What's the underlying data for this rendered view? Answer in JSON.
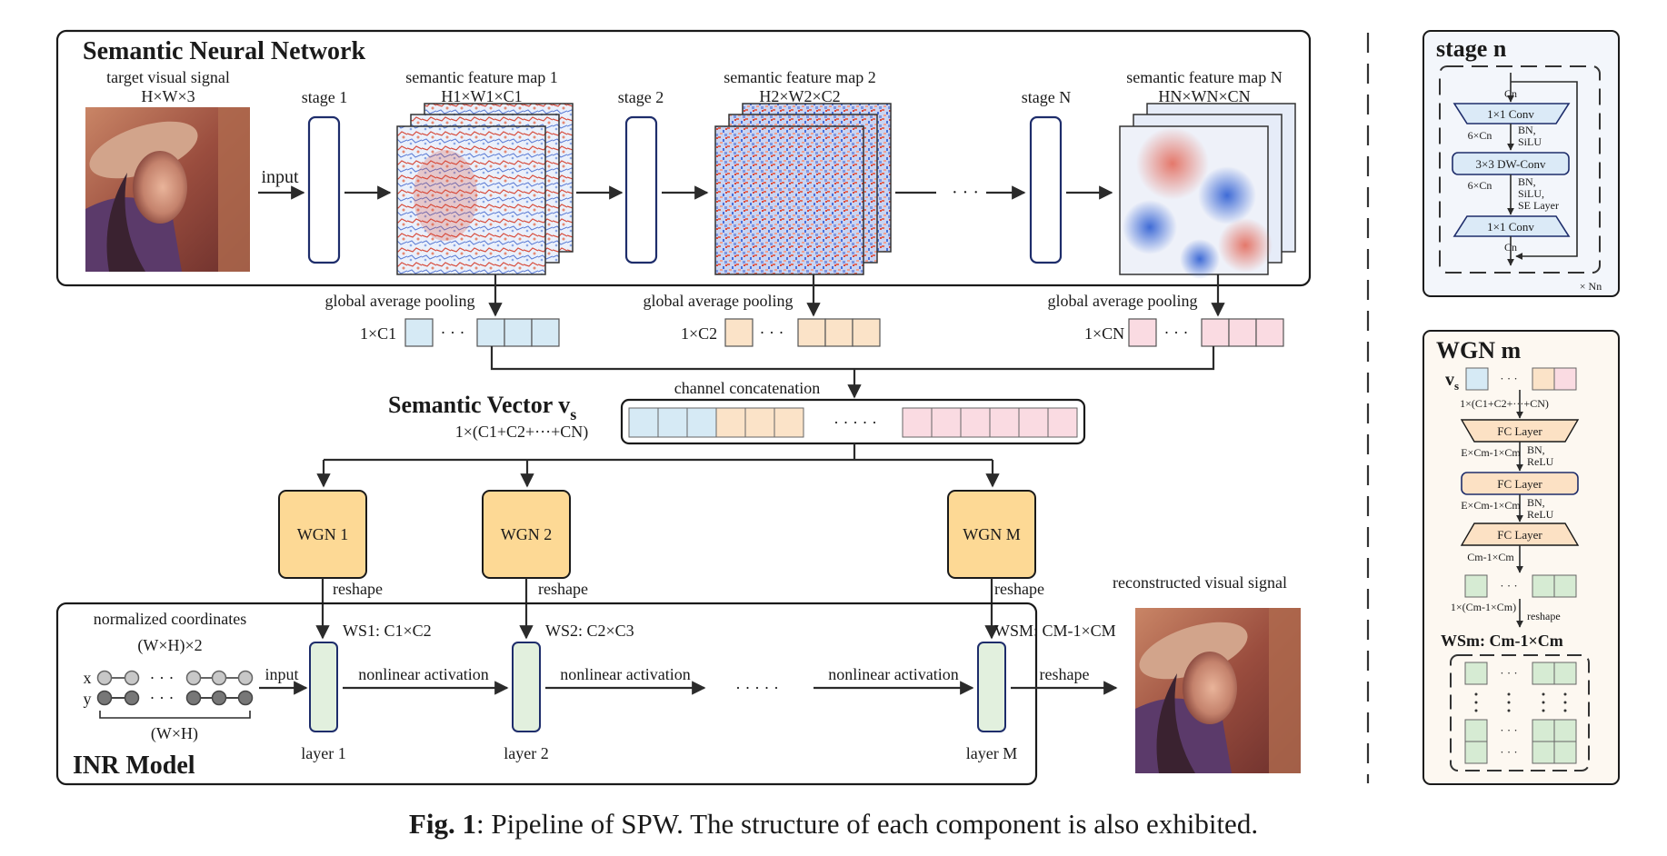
{
  "panels": {
    "snn_title": "Semantic Neural Network",
    "inr_title": "INR Model",
    "stage_n_title": "stage n",
    "wgn_m_title": "WGN m"
  },
  "input_image": {
    "label_line1": "target visual signal",
    "label_line2": "H×W×3",
    "arrow_label": "input"
  },
  "stages": [
    {
      "label": "stage 1"
    },
    {
      "label": "stage 2"
    },
    {
      "label": "stage N"
    }
  ],
  "feature_maps": [
    {
      "title": "semantic feature map 1",
      "dims": "H1×W1×C1",
      "pooling": "global average pooling",
      "vec_label": "1×C1",
      "color": "#d6eaf5",
      "ellipsis": "· · ·"
    },
    {
      "title": "semantic feature map 2",
      "dims": "H2×W2×C2",
      "pooling": "global average pooling",
      "vec_label": "1×C2",
      "color": "#fbe3c8",
      "ellipsis": "· · ·"
    },
    {
      "title": "semantic feature map N",
      "dims": "HN×WN×CN",
      "pooling": "global average pooling",
      "vec_label": "1×CN",
      "color": "#fadbe2",
      "ellipsis": "· · ·"
    }
  ],
  "between_stages_ellipsis": "· · ·",
  "semantic_vector": {
    "concat_label": "channel concatenation",
    "title": "Semantic Vector v",
    "title_sub": "s",
    "dims": "1×(C1+C2+···+CN)",
    "ellipsis": "· · · · ·"
  },
  "wgns": [
    {
      "label": "WGN 1",
      "reshape": "reshape",
      "weight": "WS1: C1×C2"
    },
    {
      "label": "WGN 2",
      "reshape": "reshape",
      "weight": "WS2: C2×C3"
    },
    {
      "label": "WGN M",
      "reshape": "reshape",
      "weight": "WSM: CM-1×CM"
    }
  ],
  "wgn_color": "#fdd995",
  "inr": {
    "coords_line1": "normalized coordinates",
    "coords_line2": "(W×H)×2",
    "x_label": "x",
    "y_label": "y",
    "coords_count": "(W×H)",
    "dots": "· · ·",
    "input_label": "input",
    "layers": [
      "layer 1",
      "layer 2",
      "layer M"
    ],
    "activation": "nonlinear activation",
    "mid_ellipsis": "· · · · ·",
    "reshape_label": "reshape",
    "output_label": "reconstructed visual signal",
    "layer_color": "#e2f0de"
  },
  "stage_n": {
    "cin": "Cn",
    "conv1": "1×1 Conv",
    "mid1": "6×Cn",
    "bn1": [
      "BN,",
      "SiLU"
    ],
    "dwconv": "3×3 DW-Conv",
    "mid2": "6×Cn",
    "bn2": [
      "BN,",
      "SiLU,",
      "SE Layer"
    ],
    "conv2": "1×1 Conv",
    "cout": "Cn",
    "repeat": "× Nn",
    "block_color": "#dbeaf7"
  },
  "wgn_m": {
    "vs": "v",
    "vs_sub": "s",
    "dims": "1×(C1+C2+···+CN)",
    "fc1": "FC Layer",
    "e1": "E×Cm-1×Cm",
    "bn1": [
      "BN,",
      "ReLU"
    ],
    "fc2": "FC Layer",
    "e2": "E×Cm-1×Cm",
    "bn2": [
      "BN,",
      "ReLU"
    ],
    "fc3": "FC Layer",
    "out_dims": "Cm-1×Cm",
    "vec_dims": "1×(Cm-1×Cm)",
    "reshape": "reshape",
    "weight": "WSm: Cm-1×Cm",
    "dots": "· · ·",
    "fc_color": "#fce1c4",
    "cell_color": "#d6ebd3"
  },
  "caption": {
    "bold": "Fig. 1",
    "text": ": Pipeline of SPW. The structure of each component is also exhibited."
  }
}
